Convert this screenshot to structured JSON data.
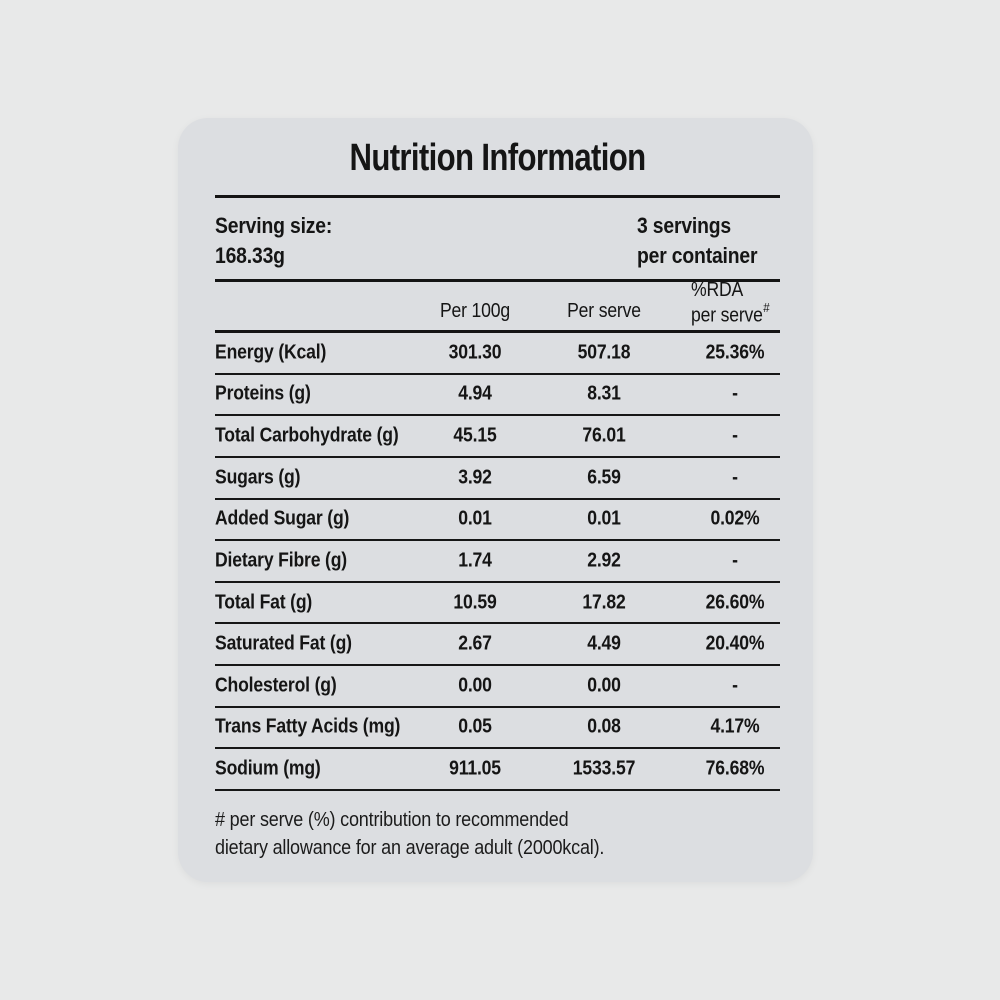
{
  "page": {
    "background_color": "#e8e9e9",
    "card_color": "#dcdee1",
    "text_color": "#151515",
    "rule_color": "#141414"
  },
  "card": {
    "title": "Nutrition Information"
  },
  "serving": {
    "size_label": "Serving size:",
    "size_value": "168.33g",
    "servings_line1": "3 servings",
    "servings_line2": "per container"
  },
  "table": {
    "columns": {
      "per_100g": "Per 100g",
      "per_serve": "Per serve",
      "rda_line1": "%RDA",
      "rda_line2": "per serve",
      "rda_sup": "#"
    },
    "rows": [
      {
        "label": "Energy (Kcal)",
        "per_100g": "301.30",
        "per_serve": "507.18",
        "rda": "25.36%"
      },
      {
        "label": "Proteins (g)",
        "per_100g": "4.94",
        "per_serve": "8.31",
        "rda": "-"
      },
      {
        "label": "Total Carbohydrate (g)",
        "per_100g": "45.15",
        "per_serve": "76.01",
        "rda": "-"
      },
      {
        "label": "Sugars (g)",
        "per_100g": "3.92",
        "per_serve": "6.59",
        "rda": "-"
      },
      {
        "label": "Added Sugar (g)",
        "per_100g": "0.01",
        "per_serve": "0.01",
        "rda": "0.02%"
      },
      {
        "label": "Dietary Fibre (g)",
        "per_100g": "1.74",
        "per_serve": "2.92",
        "rda": "-"
      },
      {
        "label": "Total Fat (g)",
        "per_100g": "10.59",
        "per_serve": "17.82",
        "rda": "26.60%"
      },
      {
        "label": "Saturated Fat (g)",
        "per_100g": "2.67",
        "per_serve": "4.49",
        "rda": "20.40%"
      },
      {
        "label": "Cholesterol (g)",
        "per_100g": "0.00",
        "per_serve": "0.00",
        "rda": "-"
      },
      {
        "label": "Trans Fatty Acids (mg)",
        "per_100g": "0.05",
        "per_serve": "0.08",
        "rda": "4.17%"
      },
      {
        "label": "Sodium (mg)",
        "per_100g": "911.05",
        "per_serve": "1533.57",
        "rda": "76.68%"
      }
    ]
  },
  "footnote": {
    "line1": "# per serve (%) contribution to recommended",
    "line2": "dietary allowance for an average adult (2000kcal)."
  }
}
